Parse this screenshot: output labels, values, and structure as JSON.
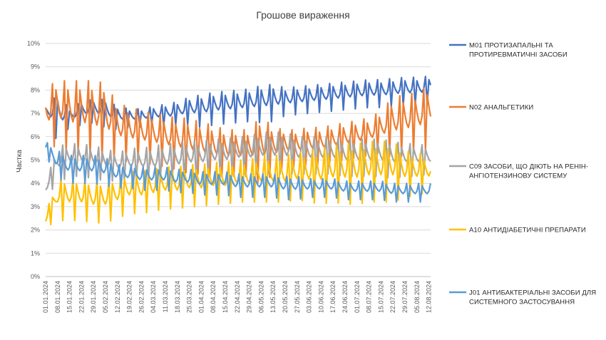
{
  "chart_data": {
    "type": "line",
    "title": "Грошове вираження",
    "xlabel": "",
    "ylabel": "Частка",
    "ylim": [
      0,
      10
    ],
    "y_ticks": [
      "0%",
      "1%",
      "2%",
      "3%",
      "4%",
      "5%",
      "6%",
      "7%",
      "8%",
      "9%",
      "10%"
    ],
    "x_tick_labels": [
      "01.01.2024",
      "08.01.2024",
      "15.01.2024",
      "22.01.2024",
      "29.01.2024",
      "05.02.2024",
      "12.02.2024",
      "19.02.2024",
      "26.02.2024",
      "04.03.2024",
      "11.03.2024",
      "18.03.2024",
      "25.03.2024",
      "01.04.2024",
      "08.04.2024",
      "15.04.2024",
      "22.04.2024",
      "29.04.2024",
      "06.05.2024",
      "13.05.2024",
      "20.05.2024",
      "27.05.2024",
      "03.06.2024",
      "10.06.2024",
      "17.06.2024",
      "24.06.2024",
      "01.07.2024",
      "08.07.2024",
      "15.07.2024",
      "22.07.2024",
      "29.07.2024",
      "05.08.2024",
      "12.08.2024"
    ],
    "x_range": [
      "01.01.2024",
      "13.08.2024"
    ],
    "grid": "horizontal",
    "legend_position": "right",
    "series": [
      {
        "name": "M01 ПРОТИЗАПАЛЬНІ ТА ПРОТИРЕВМАТИЧНІ ЗАСОБИ",
        "color": "#4472C4",
        "base": [
          7.0,
          6.8,
          6.8,
          7.0,
          7.1,
          7.0,
          6.8,
          6.8,
          6.8,
          6.9,
          6.9,
          7.0,
          7.1,
          7.1,
          7.2,
          7.25,
          7.3,
          7.35,
          7.4,
          7.45,
          7.5,
          7.55,
          7.6,
          7.65,
          7.7,
          7.75,
          7.8,
          7.85,
          7.85,
          7.9,
          7.95,
          7.95,
          8.0,
          8.0
        ],
        "amp": [
          0.3,
          1.0,
          0.4,
          0.5,
          0.5,
          0.6,
          0.5,
          0.4,
          0.4,
          0.4,
          0.5,
          0.5,
          0.6,
          0.7,
          0.7,
          0.7,
          0.7,
          0.7,
          0.8,
          0.8,
          0.6,
          0.6,
          0.6,
          0.6,
          0.6,
          0.6,
          0.6,
          0.6,
          0.6,
          0.6,
          0.6,
          0.6,
          0.6,
          0.6
        ],
        "phase": 0
      },
      {
        "name": "N02 АНАЛЬГЕТИКИ",
        "color": "#ED7D31",
        "base": [
          6.8,
          7.0,
          6.8,
          6.8,
          6.7,
          6.6,
          6.2,
          6.1,
          6.0,
          5.9,
          5.8,
          5.7,
          5.6,
          5.5,
          5.4,
          5.3,
          5.3,
          5.3,
          5.4,
          5.4,
          5.5,
          5.5,
          5.6,
          5.6,
          5.7,
          5.8,
          5.9,
          6.0,
          6.2,
          6.4,
          6.5,
          6.6,
          6.8,
          6.8
        ],
        "amp": [
          1.3,
          1.4,
          1.6,
          1.6,
          1.7,
          1.7,
          1.2,
          1.2,
          1.1,
          1.1,
          1.1,
          1.1,
          1.2,
          1.1,
          1.1,
          1.0,
          1.0,
          1.0,
          1.5,
          1.0,
          0.8,
          0.8,
          0.8,
          0.8,
          0.8,
          0.8,
          0.8,
          0.8,
          0.9,
          1.3,
          1.3,
          1.3,
          1.4,
          1.4
        ],
        "phase": 1
      },
      {
        "name": "C09 ЗАСОБИ, ЩО ДІЮТЬ НА РЕНІН-АНГІОТЕНЗИНОВУ СИСТЕМУ",
        "color": "#A5A5A5",
        "base": [
          3.7,
          4.8,
          5.0,
          5.0,
          4.9,
          4.8,
          4.7,
          4.8,
          4.8,
          4.8,
          4.9,
          4.9,
          5.0,
          5.0,
          5.1,
          5.1,
          5.2,
          5.2,
          5.3,
          5.3,
          5.3,
          5.2,
          5.2,
          5.2,
          5.2,
          5.1,
          5.1,
          5.1,
          5.1,
          5.0,
          5.0,
          5.0,
          5.0,
          5.0
        ],
        "amp": [
          0.3,
          0.8,
          0.7,
          0.7,
          0.7,
          0.7,
          0.6,
          0.7,
          0.7,
          0.8,
          0.8,
          0.8,
          0.8,
          0.8,
          0.8,
          0.8,
          0.8,
          0.8,
          0.9,
          0.9,
          0.9,
          0.8,
          0.8,
          0.8,
          0.8,
          0.8,
          0.8,
          0.8,
          0.8,
          0.8,
          0.7,
          0.7,
          0.6,
          0.6
        ],
        "phase": 2
      },
      {
        "name": "A10 АНТИДІАБЕТИЧНІ ПРЕПАРАТИ",
        "color": "#FFC000",
        "base": [
          2.4,
          3.3,
          3.3,
          3.3,
          3.2,
          3.2,
          3.4,
          3.6,
          3.6,
          3.7,
          3.8,
          3.8,
          3.9,
          3.9,
          4.0,
          4.0,
          4.1,
          4.1,
          4.2,
          4.2,
          4.2,
          4.3,
          4.3,
          4.3,
          4.4,
          4.4,
          4.4,
          4.5,
          4.5,
          4.5,
          4.4,
          4.4,
          4.4,
          4.4
        ],
        "amp": [
          0.3,
          0.9,
          0.9,
          0.9,
          0.9,
          0.9,
          0.9,
          0.9,
          0.9,
          0.9,
          0.9,
          0.9,
          0.9,
          0.9,
          0.9,
          0.9,
          0.9,
          0.9,
          1.0,
          1.0,
          1.0,
          1.0,
          1.1,
          1.2,
          1.2,
          1.3,
          1.3,
          1.3,
          1.3,
          1.3,
          1.0,
          0.9,
          0.8,
          0.8
        ],
        "phase": 3
      },
      {
        "name": "J01 АНТИБАКТЕРІАЛЬНІ ЗАСОБИ ДЛЯ СИСТЕМНОГО ЗАСТОСУВАННЯ",
        "color": "#5B9BD5",
        "base": [
          5.5,
          4.8,
          4.6,
          4.6,
          4.6,
          4.5,
          4.3,
          4.3,
          4.2,
          4.2,
          4.2,
          4.1,
          4.1,
          4.0,
          4.0,
          4.0,
          3.9,
          3.9,
          3.9,
          3.9,
          3.8,
          3.8,
          3.8,
          3.8,
          3.8,
          3.7,
          3.7,
          3.7,
          3.7,
          3.6,
          3.6,
          3.6,
          3.6,
          3.6
        ],
        "amp": [
          0.3,
          0.6,
          0.6,
          0.6,
          0.6,
          0.6,
          0.5,
          0.5,
          0.5,
          0.5,
          0.5,
          0.5,
          0.5,
          0.5,
          0.5,
          0.5,
          0.5,
          0.5,
          0.5,
          0.5,
          0.5,
          0.5,
          0.4,
          0.4,
          0.4,
          0.4,
          0.4,
          0.4,
          0.4,
          0.4,
          0.4,
          0.4,
          0.4,
          0.4
        ],
        "phase": 4
      }
    ]
  }
}
